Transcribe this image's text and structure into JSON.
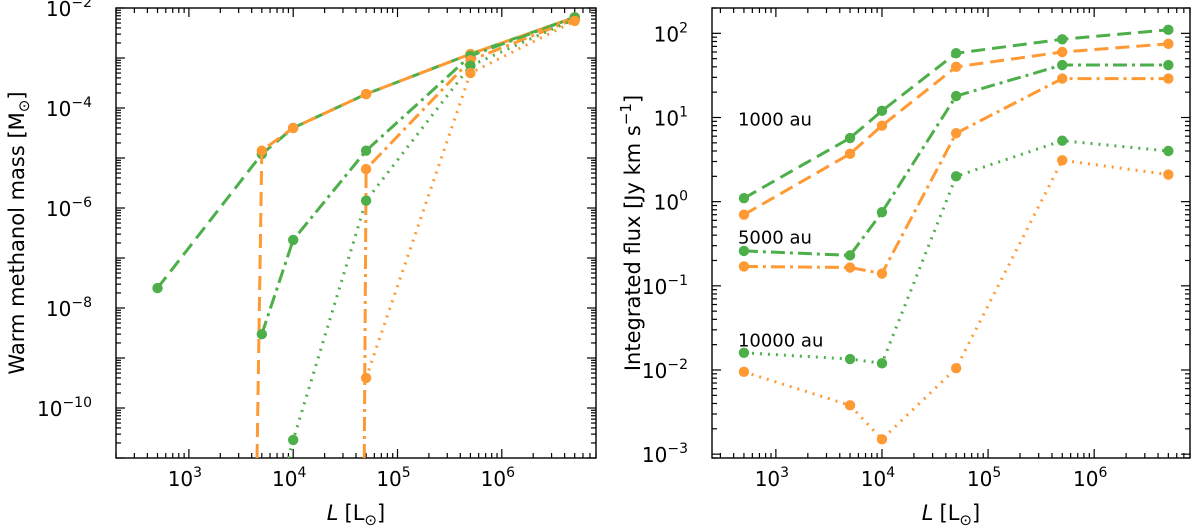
{
  "colors": {
    "green": "#4daf4a",
    "orange": "#ff9933"
  },
  "chart_data": [
    {
      "type": "line",
      "xscale": "log",
      "yscale": "log",
      "xlim": [
        200,
        8000000
      ],
      "ylim": [
        1e-11,
        0.01
      ],
      "xticks": [
        1000,
        10000,
        100000,
        1000000
      ],
      "xtick_labels": [
        {
          "base": "10",
          "exp": "3"
        },
        {
          "base": "10",
          "exp": "4"
        },
        {
          "base": "10",
          "exp": "5"
        },
        {
          "base": "10",
          "exp": "6"
        }
      ],
      "yticks": [
        1e-10,
        1e-08,
        1e-06,
        0.0001,
        0.01
      ],
      "ytick_labels": [
        {
          "base": "10",
          "exp": "−10"
        },
        {
          "base": "10",
          "exp": "−8"
        },
        {
          "base": "10",
          "exp": "−6"
        },
        {
          "base": "10",
          "exp": "−4"
        },
        {
          "base": "10",
          "exp": "−2"
        }
      ],
      "xlabel": {
        "italic": "L",
        "unit": "[L",
        "sub": "⊙",
        "close": "]"
      },
      "ylabel": {
        "text": "Warm methanol mass [M",
        "sub": "⊙",
        "close": "]"
      },
      "annotations": [],
      "series": [
        {
          "color": "green",
          "dash": "dashed",
          "x": [
            500,
            5000,
            10000,
            50000,
            500000,
            5000000
          ],
          "y": [
            2.5e-08,
            1.2e-05,
            4e-05,
            0.00019,
            0.0012,
            0.0065
          ]
        },
        {
          "color": "orange",
          "dash": "dashed",
          "x": [
            4500,
            5000,
            10000,
            50000,
            500000,
            5000000
          ],
          "y": [
            1e-11,
            1.4e-05,
            4e-05,
            0.00019,
            0.0012,
            0.0065
          ]
        },
        {
          "color": "green",
          "dash": "dashdot",
          "x": [
            5000,
            10000,
            50000,
            500000,
            5000000
          ],
          "y": [
            3e-09,
            2.3e-07,
            1.4e-05,
            0.0011,
            0.0065
          ]
        },
        {
          "color": "orange",
          "dash": "dashdot",
          "x": [
            48000,
            50000,
            500000,
            5000000
          ],
          "y": [
            1e-11,
            6e-06,
            0.0009,
            0.006
          ]
        },
        {
          "color": "green",
          "dash": "dotted",
          "x": [
            9000,
            10000,
            50000,
            500000,
            5000000
          ],
          "y": [
            1e-11,
            2.3e-11,
            1.4e-06,
            0.0007,
            0.006
          ]
        },
        {
          "color": "orange",
          "dash": "dotted",
          "x": [
            50000,
            500000,
            5000000
          ],
          "y": [
            4e-10,
            0.0005,
            0.0055
          ]
        }
      ]
    },
    {
      "type": "line",
      "xscale": "log",
      "yscale": "log",
      "xlim": [
        250,
        8000000
      ],
      "ylim": [
        0.0009,
        200
      ],
      "xticks": [
        1000,
        10000,
        100000,
        1000000
      ],
      "xtick_labels": [
        {
          "base": "10",
          "exp": "3"
        },
        {
          "base": "10",
          "exp": "4"
        },
        {
          "base": "10",
          "exp": "5"
        },
        {
          "base": "10",
          "exp": "6"
        }
      ],
      "yticks": [
        0.001,
        0.01,
        0.1,
        1,
        10,
        100
      ],
      "ytick_labels": [
        {
          "base": "10",
          "exp": "−3"
        },
        {
          "base": "10",
          "exp": "−2"
        },
        {
          "base": "10",
          "exp": "−1"
        },
        {
          "base": "10",
          "exp": "0"
        },
        {
          "base": "10",
          "exp": "1"
        },
        {
          "base": "10",
          "exp": "2"
        }
      ],
      "xlabel": {
        "italic": "L",
        "unit": "[L",
        "sub": "⊙",
        "close": "]"
      },
      "ylabel": {
        "text": "Integrated flux [Jy km s",
        "sup": "−1",
        "close": "]"
      },
      "annotations": [
        {
          "text": "1000 au",
          "x": 500,
          "y": 8
        },
        {
          "text": "5000 au",
          "x": 500,
          "y": 0.32
        },
        {
          "text": "10000 au",
          "x": 500,
          "y": 0.019
        }
      ],
      "series": [
        {
          "color": "green",
          "dash": "dashed",
          "x": [
            500,
            5000,
            10000,
            50000,
            500000,
            5000000
          ],
          "y": [
            1.1,
            5.7,
            12,
            58,
            85,
            110
          ]
        },
        {
          "color": "orange",
          "dash": "dashed",
          "x": [
            500,
            5000,
            10000,
            50000,
            500000,
            5000000
          ],
          "y": [
            0.7,
            3.7,
            8,
            40,
            60,
            75
          ]
        },
        {
          "color": "green",
          "dash": "dashdot",
          "x": [
            500,
            5000,
            10000,
            50000,
            500000,
            5000000
          ],
          "y": [
            0.26,
            0.23,
            0.75,
            18,
            42,
            42
          ]
        },
        {
          "color": "orange",
          "dash": "dashdot",
          "x": [
            500,
            5000,
            10000,
            50000,
            500000,
            5000000
          ],
          "y": [
            0.17,
            0.165,
            0.14,
            6.5,
            29,
            29
          ]
        },
        {
          "color": "green",
          "dash": "dotted",
          "x": [
            500,
            5000,
            10000,
            50000,
            500000,
            5000000
          ],
          "y": [
            0.016,
            0.0135,
            0.012,
            2.0,
            5.3,
            4.0
          ]
        },
        {
          "color": "orange",
          "dash": "dotted",
          "x": [
            500,
            5000,
            10000,
            50000,
            500000,
            5000000
          ],
          "y": [
            0.0095,
            0.0038,
            0.0015,
            0.0105,
            3.1,
            2.1
          ]
        }
      ]
    }
  ]
}
